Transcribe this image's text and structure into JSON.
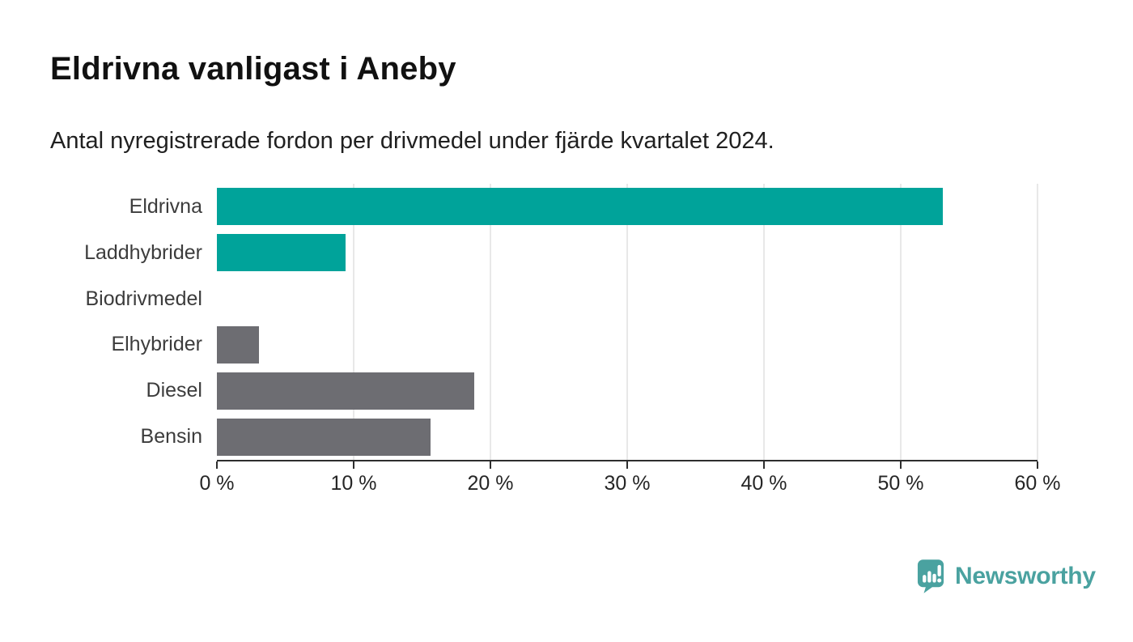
{
  "header": {
    "title": "Eldrivna vanligast i Aneby",
    "subtitle": "Antal nyregistrerade fordon per drivmedel under fjärde kvartalet 2024."
  },
  "chart_data": {
    "type": "bar",
    "orientation": "horizontal",
    "categories": [
      "Eldrivna",
      "Laddhybrider",
      "Biodrivmedel",
      "Elhybrider",
      "Diesel",
      "Bensin"
    ],
    "values": [
      53.1,
      9.4,
      0,
      3.1,
      18.8,
      15.6
    ],
    "unit": "%",
    "xlim": [
      0,
      60
    ],
    "x_ticks": [
      0,
      10,
      20,
      30,
      40,
      50,
      60
    ],
    "x_tick_labels": [
      "0 %",
      "10 %",
      "20 %",
      "30 %",
      "40 %",
      "50 %",
      "60 %"
    ],
    "bar_colors": [
      "#00a39a",
      "#00a39a",
      "#00a39a",
      "#6d6d72",
      "#6d6d72",
      "#6d6d72"
    ],
    "grid": "vertical-light",
    "legend": "none"
  },
  "colors": {
    "teal_bar": "#00a39a",
    "gray_bar": "#6d6d72",
    "gridline": "#e8e8e8",
    "axis": "#2e2e2e",
    "logo_teal": "#4aa2a0",
    "background": "#ffffff"
  },
  "footer": {
    "brand": "Newsworthy"
  },
  "icons": {
    "logo_icon": "bar-chart-speech-bubble-icon"
  }
}
